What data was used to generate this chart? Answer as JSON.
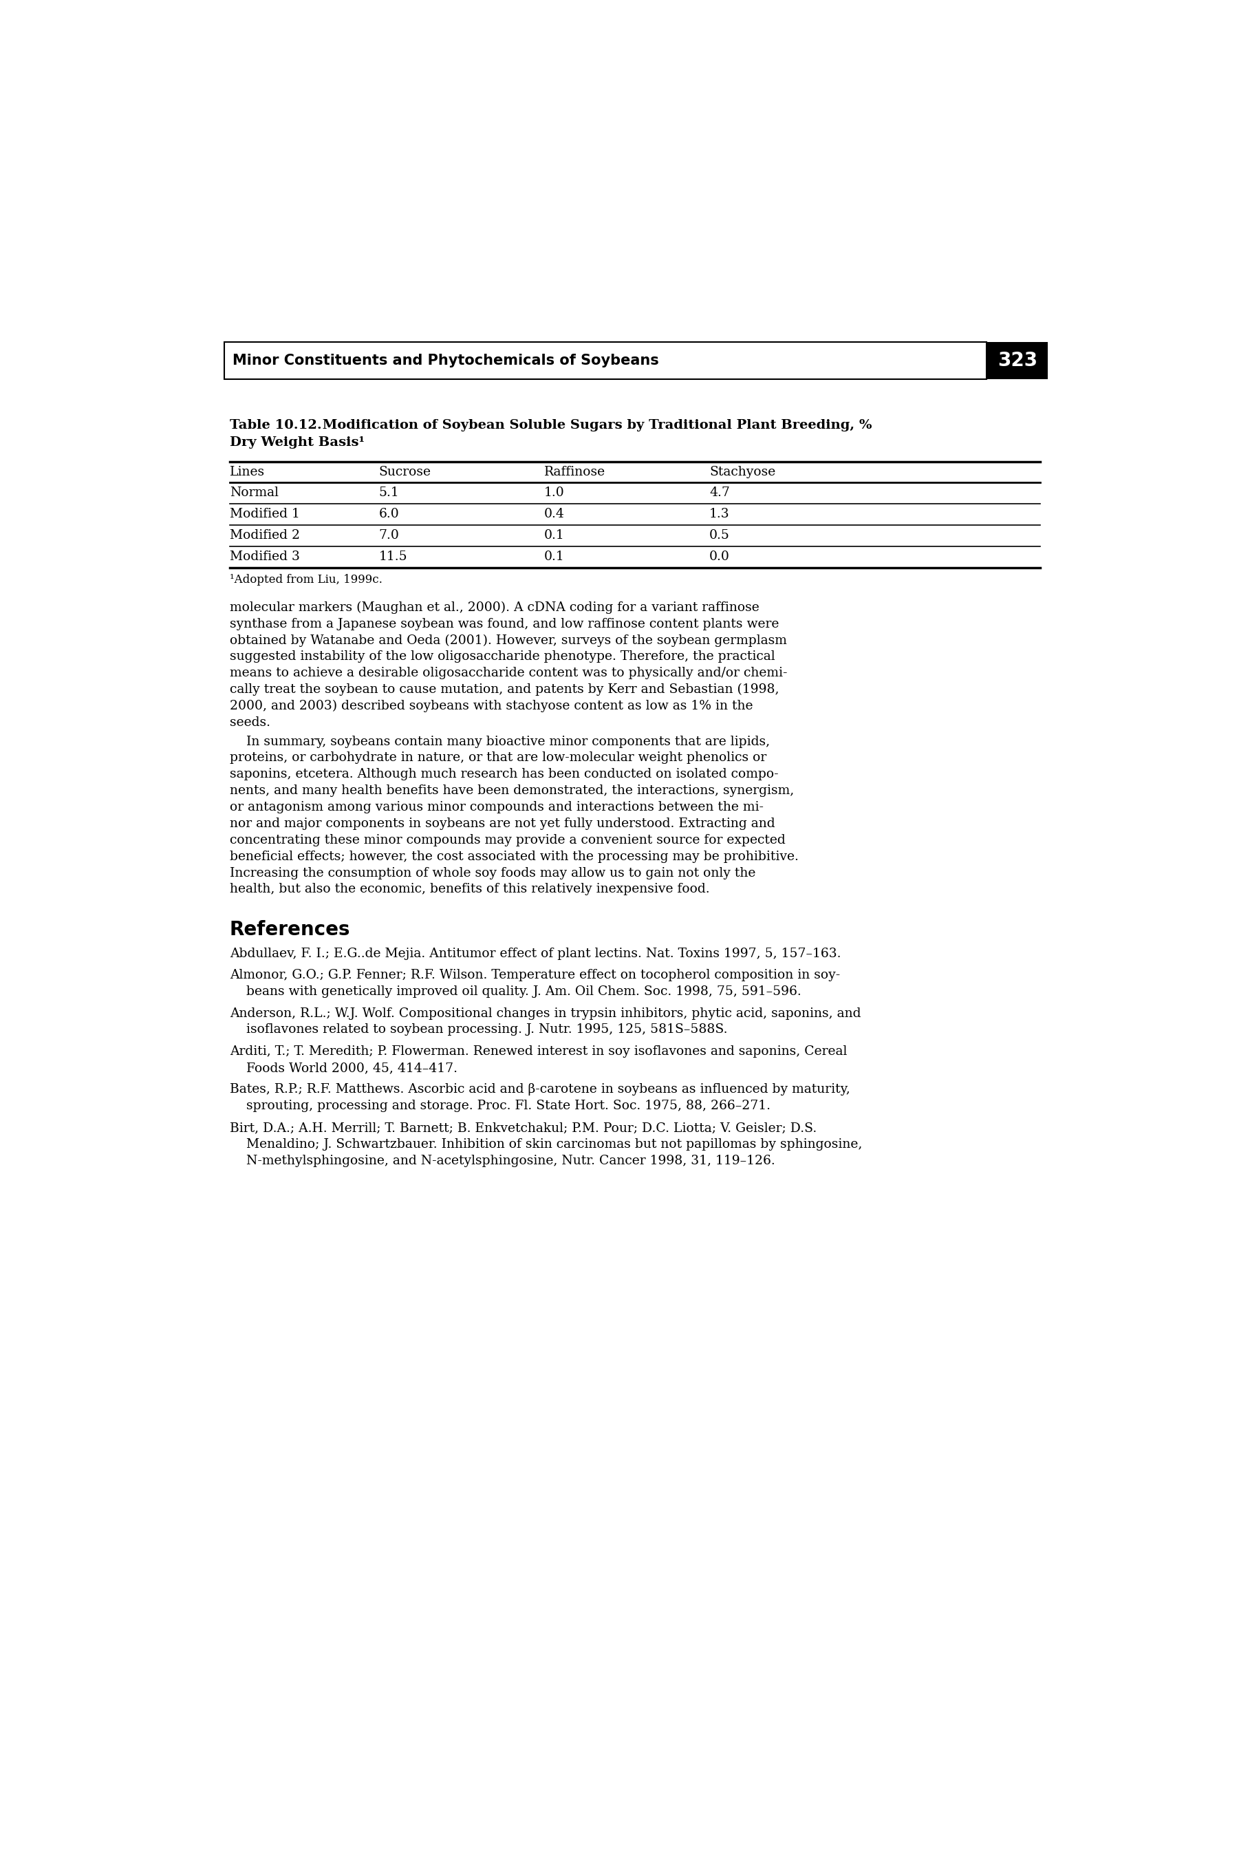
{
  "header_text": "Minor Constituents and Phytochemicals of Soybeans",
  "page_number": "323",
  "table_title_bold": "Table 10.12.",
  "table_title_rest": " Modification of Soybean Soluble Sugars by Traditional Plant Breeding, %",
  "table_title_line2": "Dry Weight Basis¹",
  "table_headers": [
    "Lines",
    "Sucrose",
    "Raffinose",
    "Stachyose"
  ],
  "table_rows": [
    [
      "Normal",
      "5.1",
      "1.0",
      "4.7"
    ],
    [
      "Modified 1",
      "6.0",
      "0.4",
      "1.3"
    ],
    [
      "Modified 2",
      "7.0",
      "0.1",
      "0.5"
    ],
    [
      "Modified 3",
      "11.5",
      "0.1",
      "0.0"
    ]
  ],
  "table_footnote": "¹Adopted from Liu, 1999c.",
  "para1_lines": [
    "molecular markers (Maughan et al., 2000). A cDNA coding for a variant raffinose",
    "synthase from a Japanese soybean was found, and low raffinose content plants were",
    "obtained by Watanabe and Oeda (2001). However, surveys of the soybean germplasm",
    "suggested instability of the low oligosaccharide phenotype. Therefore, the practical",
    "means to achieve a desirable oligosaccharide content was to physically and/or chemi-",
    "cally treat the soybean to cause mutation, and patents by Kerr and Sebastian (1998,",
    "2000, and 2003) described soybeans with stachyose content as low as 1% in the",
    "seeds."
  ],
  "para2_lines": [
    "    In summary, soybeans contain many bioactive minor components that are lipids,",
    "proteins, or carbohydrate in nature, or that are low-molecular weight phenolics or",
    "saponins, etcetera. Although much research has been conducted on isolated compo-",
    "nents, and many health benefits have been demonstrated, the interactions, synergism,",
    "or antagonism among various minor compounds and interactions between the mi-",
    "nor and major components in soybeans are not yet fully understood. Extracting and",
    "concentrating these minor compounds may provide a convenient source for expected",
    "beneficial effects; however, the cost associated with the processing may be prohibitive.",
    "Increasing the consumption of whole soy foods may allow us to gain not only the",
    "health, but also the economic, benefits of this relatively inexpensive food."
  ],
  "references_header": "References",
  "ref1_lines": [
    "Abdullaev, F. I.; E.G..de Mejia. Antitumor effect of plant lectins. Nat. Toxins 1997, 5, 157–163."
  ],
  "ref2_lines": [
    "Almonor, G.O.; G.P. Fenner; R.F. Wilson. Temperature effect on tocopherol composition in soy-",
    "    beans with genetically improved oil quality. J. Am. Oil Chem. Soc. 1998, 75, 591–596."
  ],
  "ref3_lines": [
    "Anderson, R.L.; W.J. Wolf. Compositional changes in trypsin inhibitors, phytic acid, saponins, and",
    "    isoflavones related to soybean processing. J. Nutr. 1995, 125, 581S–588S."
  ],
  "ref4_lines": [
    "Arditi, T.; T. Meredith; P. Flowerman. Renewed interest in soy isoflavones and saponins, Cereal",
    "    Foods World 2000, 45, 414–417."
  ],
  "ref5_lines": [
    "Bates, R.P.; R.F. Matthews. Ascorbic acid and β-carotene in soybeans as influenced by maturity,",
    "    sprouting, processing and storage. Proc. Fl. State Hort. Soc. 1975, 88, 266–271."
  ],
  "ref6_lines": [
    "Birt, D.A.; A.H. Merrill; T. Barnett; B. Enkvetchakul; P.M. Pour; D.C. Liotta; V. Geisler; D.S.",
    "    Menaldino; J. Schwartzbauer. Inhibition of skin carcinomas but not papillomas by sphingosine,",
    "    N-methylsphingosine, and N-acetylsphingosine, Nutr. Cancer 1998, 31, 119–126."
  ],
  "bg_color": "#ffffff"
}
